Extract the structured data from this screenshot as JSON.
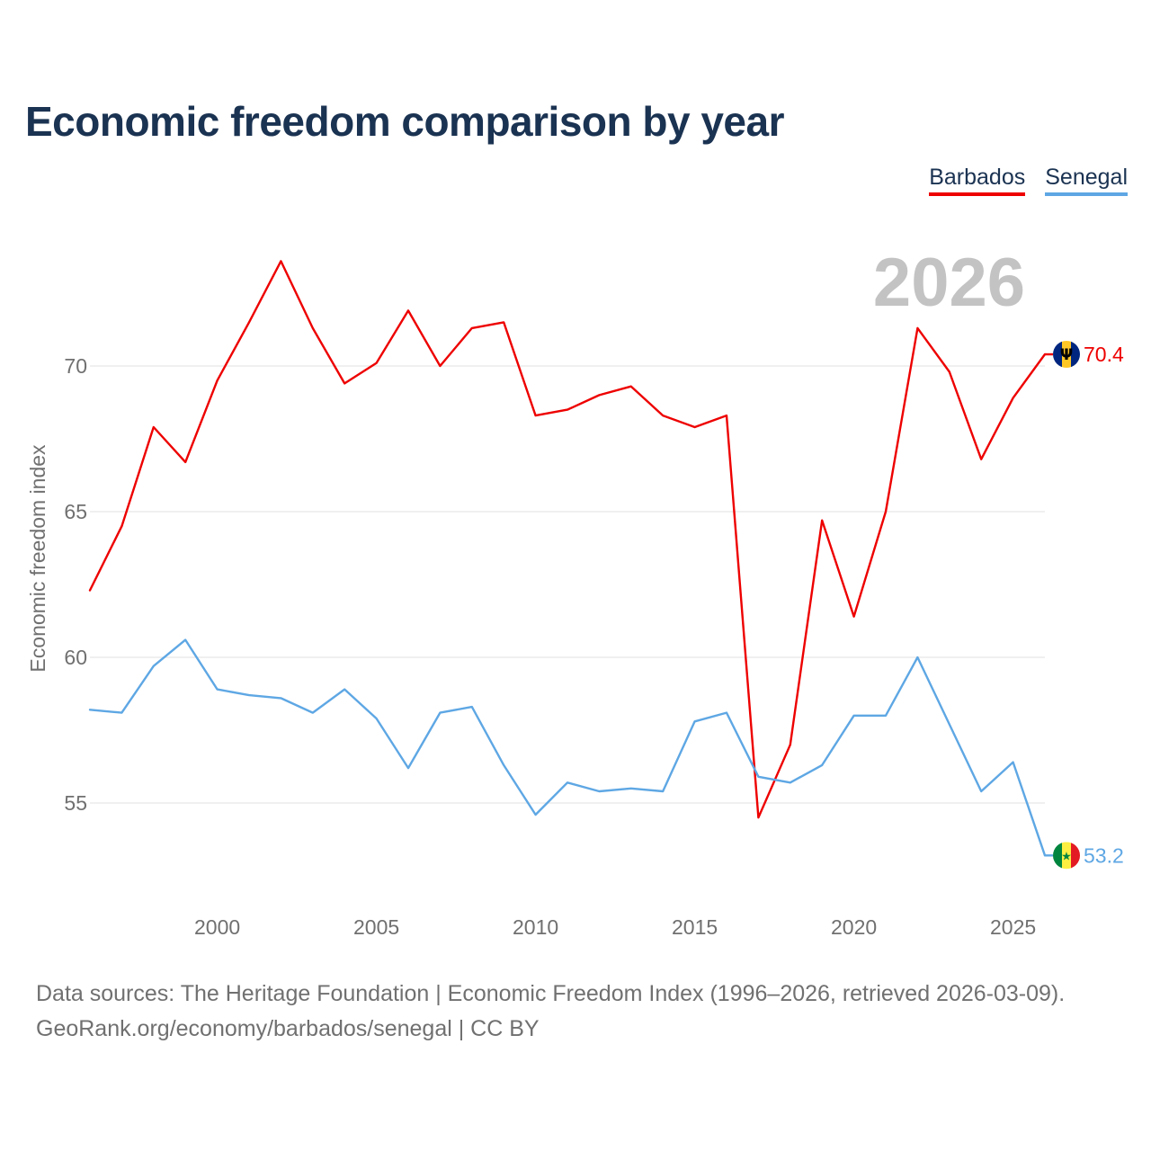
{
  "title": "Economic freedom comparison by year",
  "legend": {
    "barbados": "Barbados",
    "senegal": "Senegal"
  },
  "footer": {
    "sources": "Data sources: The Heritage Foundation | Economic Freedom Index (1996–2026, retrieved 2026-03-09).",
    "credit": "GeoRank.org/economy/barbados/senegal | CC BY"
  },
  "colors": {
    "barbados": "#ee0000",
    "senegal": "#5ea7e4",
    "title": "#1b3352",
    "axis_text": "#707070",
    "grid": "#e6e6e6",
    "year_watermark": "#c3c3c3"
  },
  "chart_data": {
    "type": "line",
    "title": "Economic freedom comparison by year",
    "xlabel": "",
    "ylabel": "Economic freedom index",
    "current_year_label": "2026",
    "xlim": [
      1996,
      2026
    ],
    "ylim": [
      52,
      74.5
    ],
    "x_ticks": [
      2000,
      2005,
      2010,
      2015,
      2020,
      2025
    ],
    "y_ticks": [
      55,
      60,
      65,
      70
    ],
    "grid": true,
    "legend_position": "top-right",
    "x": [
      1996,
      1997,
      1998,
      1999,
      2000,
      2001,
      2002,
      2003,
      2004,
      2005,
      2006,
      2007,
      2008,
      2009,
      2010,
      2011,
      2012,
      2013,
      2014,
      2015,
      2016,
      2017,
      2018,
      2019,
      2020,
      2021,
      2022,
      2023,
      2024,
      2025,
      2026
    ],
    "series": [
      {
        "name": "Barbados",
        "end_label": "70.4",
        "flag_icon": "barbados-flag-icon",
        "values": [
          62.3,
          64.5,
          67.9,
          66.7,
          69.5,
          71.5,
          73.6,
          71.3,
          69.4,
          70.1,
          71.9,
          70.0,
          71.3,
          71.5,
          68.3,
          68.5,
          69.0,
          69.3,
          68.3,
          67.9,
          68.3,
          54.5,
          57.0,
          64.7,
          61.4,
          65.0,
          71.3,
          69.8,
          66.8,
          68.9,
          70.4
        ]
      },
      {
        "name": "Senegal",
        "end_label": "53.2",
        "flag_icon": "senegal-flag-icon",
        "values": [
          58.2,
          58.1,
          59.7,
          60.6,
          58.9,
          58.7,
          58.6,
          58.1,
          58.9,
          57.9,
          56.2,
          58.1,
          58.3,
          56.3,
          54.6,
          55.7,
          55.4,
          55.5,
          55.4,
          57.8,
          58.1,
          55.9,
          55.7,
          56.3,
          58.0,
          58.0,
          60.0,
          57.7,
          55.4,
          56.4,
          53.2
        ]
      }
    ]
  }
}
